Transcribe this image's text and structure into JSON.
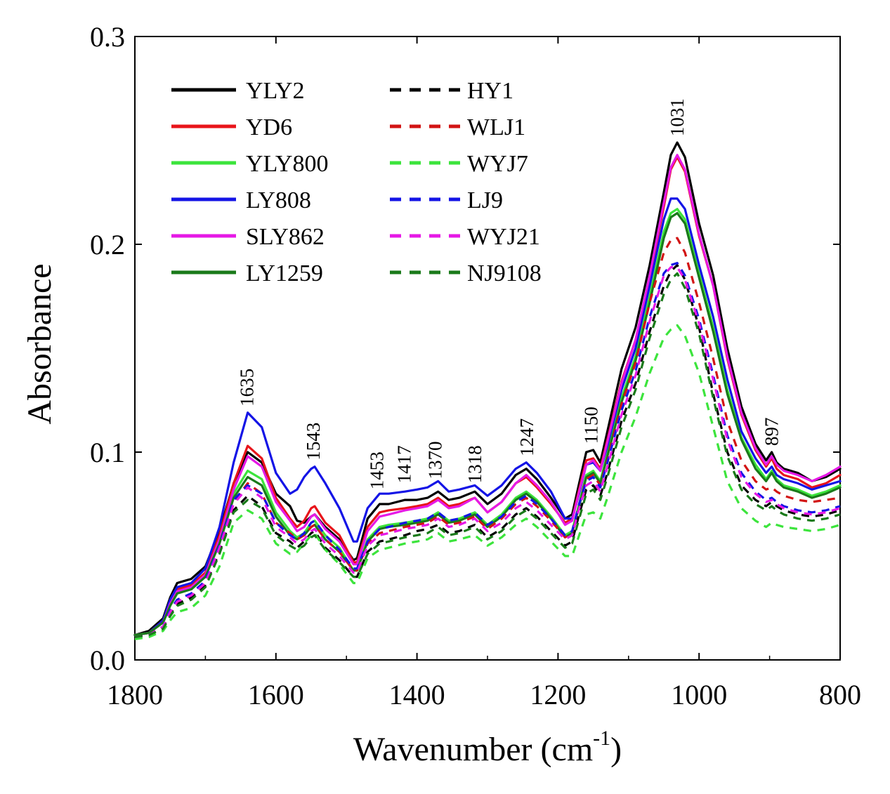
{
  "chart_data": {
    "type": "line",
    "xlabel": "Wavenumber (cm",
    "xlabel_sup": "-1",
    "xlabel_close": ")",
    "ylabel": "Absorbance",
    "xlim": [
      1800,
      800
    ],
    "ylim": [
      0.0,
      0.3
    ],
    "x_ticks": [
      1800,
      1600,
      1400,
      1200,
      1000,
      800
    ],
    "x_tick_labels": [
      "1800",
      "1600",
      "1400",
      "1200",
      "1000",
      "800"
    ],
    "y_ticks": [
      0.0,
      0.1,
      0.2,
      0.3
    ],
    "y_tick_labels": [
      "0.0",
      "0.1",
      "0.2",
      "0.3"
    ],
    "grid": false,
    "legend_position": "top-left",
    "annotations": [
      {
        "label": "1635",
        "x": 1641,
        "y": 0.122
      },
      {
        "label": "1543",
        "x": 1547,
        "y": 0.096
      },
      {
        "label": "1453",
        "x": 1457,
        "y": 0.082
      },
      {
        "label": "1417",
        "x": 1418,
        "y": 0.085
      },
      {
        "label": "1370",
        "x": 1374,
        "y": 0.087
      },
      {
        "label": "1318",
        "x": 1318,
        "y": 0.085
      },
      {
        "label": "1247",
        "x": 1244,
        "y": 0.098
      },
      {
        "label": "1150",
        "x": 1153,
        "y": 0.104
      },
      {
        "label": "1031",
        "x": 1031,
        "y": 0.252
      },
      {
        "label": "897",
        "x": 897,
        "y": 0.103
      }
    ],
    "x": [
      1800,
      1780,
      1760,
      1750,
      1740,
      1720,
      1700,
      1680,
      1660,
      1640,
      1620,
      1600,
      1580,
      1570,
      1560,
      1550,
      1545,
      1530,
      1510,
      1490,
      1485,
      1470,
      1453,
      1440,
      1417,
      1400,
      1385,
      1370,
      1355,
      1340,
      1318,
      1300,
      1280,
      1260,
      1245,
      1230,
      1210,
      1190,
      1180,
      1170,
      1160,
      1150,
      1140,
      1130,
      1110,
      1090,
      1070,
      1050,
      1040,
      1031,
      1020,
      1000,
      980,
      960,
      940,
      920,
      905,
      897,
      890,
      880,
      860,
      840,
      820,
      800
    ],
    "series": [
      {
        "name": "YLY2",
        "color": "#000000",
        "dash": false,
        "values": [
          0.012,
          0.014,
          0.02,
          0.03,
          0.037,
          0.039,
          0.045,
          0.062,
          0.085,
          0.1,
          0.095,
          0.08,
          0.074,
          0.067,
          0.066,
          0.069,
          0.07,
          0.064,
          0.058,
          0.048,
          0.049,
          0.068,
          0.075,
          0.075,
          0.077,
          0.077,
          0.078,
          0.081,
          0.077,
          0.078,
          0.081,
          0.075,
          0.08,
          0.089,
          0.092,
          0.087,
          0.078,
          0.068,
          0.07,
          0.085,
          0.1,
          0.101,
          0.095,
          0.11,
          0.14,
          0.16,
          0.19,
          0.225,
          0.243,
          0.249,
          0.242,
          0.21,
          0.185,
          0.15,
          0.122,
          0.104,
          0.096,
          0.1,
          0.095,
          0.092,
          0.09,
          0.086,
          0.088,
          0.092
        ]
      },
      {
        "name": "YD6",
        "color": "#e8141a",
        "dash": false,
        "values": [
          0.012,
          0.013,
          0.019,
          0.028,
          0.034,
          0.036,
          0.042,
          0.06,
          0.085,
          0.103,
          0.097,
          0.078,
          0.068,
          0.064,
          0.067,
          0.073,
          0.074,
          0.066,
          0.06,
          0.047,
          0.047,
          0.064,
          0.071,
          0.072,
          0.073,
          0.074,
          0.075,
          0.078,
          0.074,
          0.075,
          0.078,
          0.071,
          0.076,
          0.085,
          0.088,
          0.083,
          0.075,
          0.066,
          0.068,
          0.082,
          0.096,
          0.097,
          0.092,
          0.106,
          0.134,
          0.154,
          0.184,
          0.218,
          0.236,
          0.242,
          0.235,
          0.204,
          0.18,
          0.145,
          0.118,
          0.101,
          0.093,
          0.097,
          0.092,
          0.089,
          0.087,
          0.083,
          0.085,
          0.089
        ]
      },
      {
        "name": "YLY800",
        "color": "#3ce43c",
        "dash": false,
        "values": [
          0.012,
          0.013,
          0.018,
          0.026,
          0.032,
          0.034,
          0.04,
          0.057,
          0.08,
          0.091,
          0.087,
          0.071,
          0.062,
          0.059,
          0.061,
          0.066,
          0.067,
          0.06,
          0.054,
          0.043,
          0.043,
          0.058,
          0.064,
          0.065,
          0.066,
          0.067,
          0.068,
          0.071,
          0.067,
          0.068,
          0.071,
          0.065,
          0.07,
          0.078,
          0.081,
          0.077,
          0.069,
          0.06,
          0.062,
          0.075,
          0.089,
          0.091,
          0.086,
          0.099,
          0.126,
          0.146,
          0.175,
          0.206,
          0.215,
          0.217,
          0.212,
          0.186,
          0.16,
          0.13,
          0.107,
          0.094,
          0.087,
          0.091,
          0.087,
          0.084,
          0.082,
          0.079,
          0.081,
          0.084
        ]
      },
      {
        "name": "LY808",
        "color": "#1414e6",
        "dash": false,
        "values": [
          0.012,
          0.013,
          0.019,
          0.029,
          0.035,
          0.037,
          0.044,
          0.064,
          0.095,
          0.119,
          0.112,
          0.09,
          0.08,
          0.082,
          0.088,
          0.092,
          0.093,
          0.085,
          0.073,
          0.057,
          0.057,
          0.073,
          0.08,
          0.08,
          0.081,
          0.082,
          0.083,
          0.086,
          0.081,
          0.082,
          0.084,
          0.079,
          0.084,
          0.092,
          0.095,
          0.09,
          0.081,
          0.068,
          0.068,
          0.08,
          0.094,
          0.095,
          0.091,
          0.103,
          0.13,
          0.15,
          0.18,
          0.212,
          0.222,
          0.222,
          0.217,
          0.19,
          0.165,
          0.135,
          0.11,
          0.097,
          0.09,
          0.093,
          0.089,
          0.087,
          0.085,
          0.082,
          0.084,
          0.086
        ]
      },
      {
        "name": "SLY862",
        "color": "#e619e6",
        "dash": false,
        "values": [
          0.012,
          0.013,
          0.018,
          0.027,
          0.033,
          0.035,
          0.041,
          0.058,
          0.082,
          0.098,
          0.093,
          0.076,
          0.067,
          0.062,
          0.064,
          0.069,
          0.07,
          0.063,
          0.057,
          0.046,
          0.046,
          0.062,
          0.069,
          0.07,
          0.072,
          0.073,
          0.074,
          0.077,
          0.073,
          0.074,
          0.078,
          0.071,
          0.076,
          0.085,
          0.089,
          0.084,
          0.076,
          0.065,
          0.067,
          0.081,
          0.094,
          0.096,
          0.091,
          0.105,
          0.133,
          0.154,
          0.185,
          0.22,
          0.237,
          0.243,
          0.236,
          0.205,
          0.18,
          0.146,
          0.119,
          0.102,
          0.094,
          0.098,
          0.094,
          0.091,
          0.089,
          0.086,
          0.089,
          0.093
        ]
      },
      {
        "name": "LY1259",
        "color": "#1a7a1a",
        "dash": false,
        "values": [
          0.012,
          0.013,
          0.018,
          0.026,
          0.032,
          0.034,
          0.04,
          0.056,
          0.078,
          0.088,
          0.084,
          0.069,
          0.06,
          0.058,
          0.06,
          0.064,
          0.065,
          0.058,
          0.052,
          0.043,
          0.043,
          0.057,
          0.063,
          0.064,
          0.065,
          0.066,
          0.067,
          0.07,
          0.066,
          0.067,
          0.07,
          0.064,
          0.069,
          0.077,
          0.08,
          0.076,
          0.068,
          0.059,
          0.061,
          0.074,
          0.088,
          0.09,
          0.085,
          0.098,
          0.124,
          0.144,
          0.172,
          0.203,
          0.213,
          0.215,
          0.21,
          0.184,
          0.158,
          0.128,
          0.106,
          0.092,
          0.086,
          0.09,
          0.086,
          0.083,
          0.081,
          0.078,
          0.08,
          0.083
        ]
      },
      {
        "name": "HY1",
        "color": "#000000",
        "dash": true,
        "values": [
          0.011,
          0.012,
          0.016,
          0.022,
          0.027,
          0.03,
          0.036,
          0.052,
          0.072,
          0.079,
          0.074,
          0.061,
          0.057,
          0.054,
          0.057,
          0.061,
          0.062,
          0.054,
          0.048,
          0.04,
          0.04,
          0.052,
          0.057,
          0.058,
          0.06,
          0.062,
          0.063,
          0.065,
          0.061,
          0.062,
          0.065,
          0.059,
          0.063,
          0.07,
          0.073,
          0.069,
          0.062,
          0.055,
          0.057,
          0.07,
          0.082,
          0.084,
          0.079,
          0.09,
          0.115,
          0.133,
          0.158,
          0.18,
          0.187,
          0.19,
          0.183,
          0.16,
          0.128,
          0.1,
          0.084,
          0.077,
          0.074,
          0.076,
          0.074,
          0.072,
          0.07,
          0.069,
          0.07,
          0.072
        ]
      },
      {
        "name": "WLJ1",
        "color": "#d21414",
        "dash": true,
        "values": [
          0.011,
          0.012,
          0.016,
          0.023,
          0.028,
          0.031,
          0.037,
          0.054,
          0.076,
          0.085,
          0.08,
          0.066,
          0.061,
          0.058,
          0.06,
          0.064,
          0.065,
          0.058,
          0.052,
          0.043,
          0.043,
          0.056,
          0.061,
          0.062,
          0.064,
          0.065,
          0.066,
          0.069,
          0.065,
          0.066,
          0.069,
          0.063,
          0.068,
          0.075,
          0.078,
          0.074,
          0.067,
          0.059,
          0.061,
          0.075,
          0.087,
          0.089,
          0.084,
          0.096,
          0.123,
          0.143,
          0.172,
          0.196,
          0.202,
          0.203,
          0.196,
          0.172,
          0.145,
          0.115,
          0.096,
          0.086,
          0.082,
          0.083,
          0.081,
          0.079,
          0.077,
          0.076,
          0.077,
          0.078
        ]
      },
      {
        "name": "WYJ7",
        "color": "#3ce43c",
        "dash": true,
        "values": [
          0.01,
          0.011,
          0.014,
          0.019,
          0.023,
          0.025,
          0.031,
          0.045,
          0.066,
          0.072,
          0.068,
          0.056,
          0.051,
          0.052,
          0.056,
          0.06,
          0.061,
          0.053,
          0.046,
          0.037,
          0.037,
          0.049,
          0.053,
          0.054,
          0.056,
          0.057,
          0.058,
          0.061,
          0.057,
          0.058,
          0.06,
          0.055,
          0.059,
          0.065,
          0.068,
          0.064,
          0.057,
          0.05,
          0.05,
          0.06,
          0.07,
          0.071,
          0.068,
          0.078,
          0.1,
          0.117,
          0.138,
          0.155,
          0.159,
          0.161,
          0.156,
          0.138,
          0.112,
          0.086,
          0.073,
          0.067,
          0.064,
          0.066,
          0.065,
          0.064,
          0.063,
          0.062,
          0.063,
          0.065
        ]
      },
      {
        "name": "LJ9",
        "color": "#1414e6",
        "dash": true,
        "values": [
          0.011,
          0.012,
          0.016,
          0.024,
          0.029,
          0.032,
          0.038,
          0.055,
          0.077,
          0.084,
          0.08,
          0.066,
          0.06,
          0.058,
          0.061,
          0.066,
          0.067,
          0.06,
          0.053,
          0.044,
          0.044,
          0.057,
          0.063,
          0.064,
          0.066,
          0.067,
          0.068,
          0.071,
          0.067,
          0.068,
          0.071,
          0.065,
          0.069,
          0.076,
          0.079,
          0.075,
          0.068,
          0.06,
          0.062,
          0.075,
          0.086,
          0.088,
          0.083,
          0.095,
          0.12,
          0.139,
          0.165,
          0.186,
          0.19,
          0.191,
          0.185,
          0.164,
          0.137,
          0.108,
          0.09,
          0.081,
          0.077,
          0.078,
          0.076,
          0.074,
          0.072,
          0.071,
          0.072,
          0.074
        ]
      },
      {
        "name": "WYJ21",
        "color": "#e619e6",
        "dash": true,
        "values": [
          0.011,
          0.012,
          0.016,
          0.023,
          0.028,
          0.031,
          0.037,
          0.054,
          0.075,
          0.083,
          0.078,
          0.064,
          0.059,
          0.056,
          0.058,
          0.062,
          0.063,
          0.056,
          0.05,
          0.042,
          0.042,
          0.055,
          0.06,
          0.061,
          0.063,
          0.064,
          0.065,
          0.068,
          0.064,
          0.065,
          0.068,
          0.062,
          0.066,
          0.073,
          0.076,
          0.072,
          0.065,
          0.058,
          0.06,
          0.073,
          0.084,
          0.086,
          0.081,
          0.093,
          0.118,
          0.137,
          0.163,
          0.185,
          0.189,
          0.189,
          0.183,
          0.162,
          0.135,
          0.106,
          0.088,
          0.08,
          0.076,
          0.077,
          0.075,
          0.073,
          0.071,
          0.07,
          0.071,
          0.073
        ]
      },
      {
        "name": "NJ9108",
        "color": "#1a7a1a",
        "dash": true,
        "values": [
          0.011,
          0.012,
          0.015,
          0.021,
          0.026,
          0.029,
          0.035,
          0.051,
          0.071,
          0.077,
          0.073,
          0.06,
          0.055,
          0.053,
          0.055,
          0.059,
          0.06,
          0.053,
          0.047,
          0.04,
          0.04,
          0.051,
          0.056,
          0.057,
          0.059,
          0.06,
          0.061,
          0.064,
          0.06,
          0.061,
          0.064,
          0.058,
          0.062,
          0.069,
          0.072,
          0.068,
          0.061,
          0.054,
          0.056,
          0.068,
          0.08,
          0.082,
          0.077,
          0.088,
          0.112,
          0.13,
          0.155,
          0.176,
          0.183,
          0.186,
          0.179,
          0.157,
          0.126,
          0.098,
          0.082,
          0.075,
          0.072,
          0.074,
          0.072,
          0.07,
          0.068,
          0.067,
          0.068,
          0.07
        ]
      }
    ]
  }
}
